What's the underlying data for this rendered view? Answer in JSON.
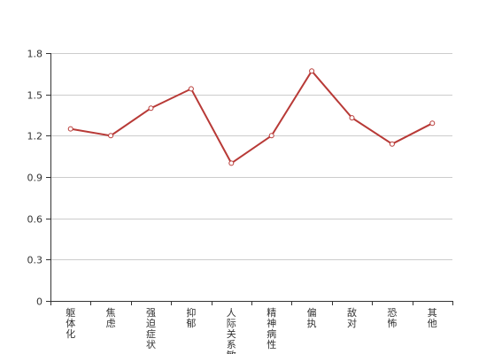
{
  "chart_data": {
    "type": "line",
    "categories": [
      "躯体化",
      "焦虑",
      "强迫症状",
      "抑郁",
      "人际关系敏感",
      "精神病性",
      "偏执",
      "敌对",
      "恐怖",
      "其他"
    ],
    "values": [
      1.25,
      1.2,
      1.4,
      1.54,
      1.0,
      1.2,
      1.67,
      1.33,
      1.14,
      1.29
    ],
    "ylim": [
      0,
      1.8
    ],
    "yticks": [
      "0",
      "0.3",
      "0.6",
      "0.9",
      "1.2",
      "1.5",
      "1.8"
    ],
    "grid": true,
    "line_color": "#b83a37",
    "marker_fill": "#ffffff"
  }
}
